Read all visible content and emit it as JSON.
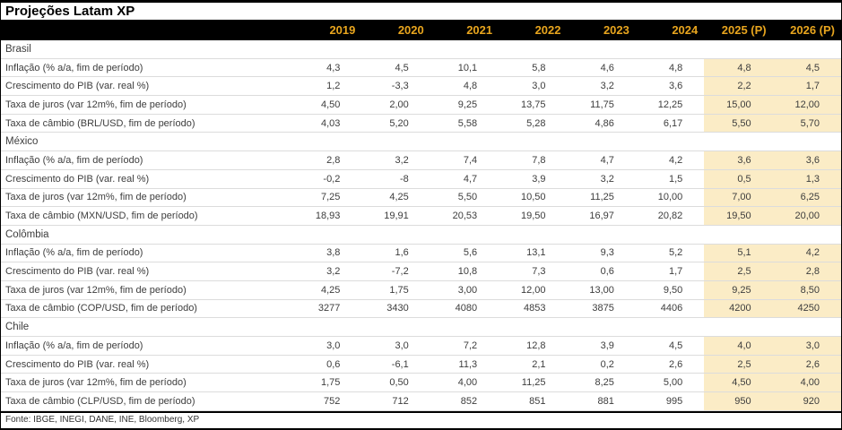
{
  "title": "Projeções Latam XP",
  "footer": "Fonte: IBGE, INEGI, DANE, INE, Bloomberg, XP",
  "colors": {
    "header_bg": "#000000",
    "year_text": "#E8A51E",
    "projection_bg": "#FBECC6",
    "grid_line": "#DCDCDC",
    "body_text": "#3D3D3D"
  },
  "chart_data": {
    "type": "table",
    "title": "Projeções Latam XP",
    "columns": [
      "2019",
      "2020",
      "2021",
      "2022",
      "2023",
      "2024",
      "2025 (P)",
      "2026 (P)"
    ],
    "projection_columns": [
      "2025 (P)",
      "2026 (P)"
    ],
    "sections": [
      {
        "country": "Brasil",
        "rows": [
          {
            "label": "Inflação (% a/a, fim de período)",
            "values": [
              "4,3",
              "4,5",
              "10,1",
              "5,8",
              "4,6",
              "4,8",
              "4,8",
              "4,5"
            ]
          },
          {
            "label": "Crescimento do PIB (var. real %)",
            "values": [
              "1,2",
              "-3,3",
              "4,8",
              "3,0",
              "3,2",
              "3,6",
              "2,2",
              "1,7"
            ]
          },
          {
            "label": "Taxa de juros (var 12m%, fim de período)",
            "values": [
              "4,50",
              "2,00",
              "9,25",
              "13,75",
              "11,75",
              "12,25",
              "15,00",
              "12,00"
            ]
          },
          {
            "label": "Taxa de câmbio (BRL/USD, fim de período)",
            "values": [
              "4,03",
              "5,20",
              "5,58",
              "5,28",
              "4,86",
              "6,17",
              "5,50",
              "5,70"
            ]
          }
        ]
      },
      {
        "country": "México",
        "rows": [
          {
            "label": "Inflação (% a/a, fim de período)",
            "values": [
              "2,8",
              "3,2",
              "7,4",
              "7,8",
              "4,7",
              "4,2",
              "3,6",
              "3,6"
            ]
          },
          {
            "label": "Crescimento do PIB (var. real %)",
            "values": [
              "-0,2",
              "-8",
              "4,7",
              "3,9",
              "3,2",
              "1,5",
              "0,5",
              "1,3"
            ]
          },
          {
            "label": "Taxa de juros (var 12m%, fim de período)",
            "values": [
              "7,25",
              "4,25",
              "5,50",
              "10,50",
              "11,25",
              "10,00",
              "7,00",
              "6,25"
            ]
          },
          {
            "label": "Taxa de câmbio (MXN/USD, fim de período)",
            "values": [
              "18,93",
              "19,91",
              "20,53",
              "19,50",
              "16,97",
              "20,82",
              "19,50",
              "20,00"
            ]
          }
        ]
      },
      {
        "country": "Colômbia",
        "rows": [
          {
            "label": "Inflação (% a/a, fim de período)",
            "values": [
              "3,8",
              "1,6",
              "5,6",
              "13,1",
              "9,3",
              "5,2",
              "5,1",
              "4,2"
            ]
          },
          {
            "label": "Crescimento do PIB (var. real %)",
            "values": [
              "3,2",
              "-7,2",
              "10,8",
              "7,3",
              "0,6",
              "1,7",
              "2,5",
              "2,8"
            ]
          },
          {
            "label": "Taxa de juros (var 12m%, fim de período)",
            "values": [
              "4,25",
              "1,75",
              "3,00",
              "12,00",
              "13,00",
              "9,50",
              "9,25",
              "8,50"
            ]
          },
          {
            "label": "Taxa de câmbio (COP/USD, fim de período)",
            "values": [
              "3277",
              "3430",
              "4080",
              "4853",
              "3875",
              "4406",
              "4200",
              "4250"
            ]
          }
        ]
      },
      {
        "country": "Chile",
        "rows": [
          {
            "label": "Inflação (% a/a, fim de período)",
            "values": [
              "3,0",
              "3,0",
              "7,2",
              "12,8",
              "3,9",
              "4,5",
              "4,0",
              "3,0"
            ]
          },
          {
            "label": "Crescimento do PIB (var. real %)",
            "values": [
              "0,6",
              "-6,1",
              "11,3",
              "2,1",
              "0,2",
              "2,6",
              "2,5",
              "2,6"
            ]
          },
          {
            "label": "Taxa de juros (var 12m%, fim de período)",
            "values": [
              "1,75",
              "0,50",
              "4,00",
              "11,25",
              "8,25",
              "5,00",
              "4,50",
              "4,00"
            ]
          },
          {
            "label": "Taxa de câmbio (CLP/USD, fim de período)",
            "values": [
              "752",
              "712",
              "852",
              "851",
              "881",
              "995",
              "950",
              "920"
            ]
          }
        ]
      }
    ],
    "source": "Fonte: IBGE, INEGI, DANE, INE, Bloomberg, XP"
  }
}
